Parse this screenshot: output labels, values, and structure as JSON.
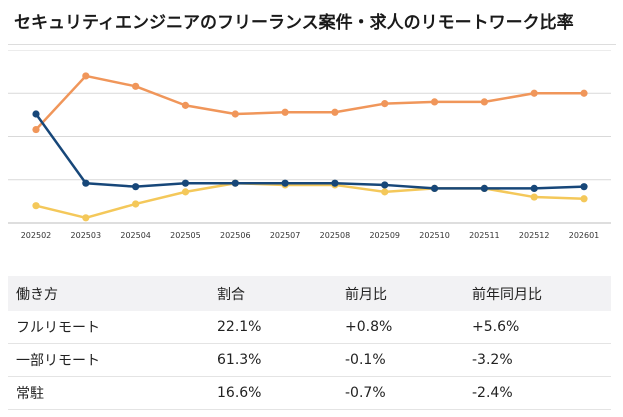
{
  "title": "セキュリティエンジニアのフリーランス案件・求人のリモートワーク比率",
  "chart_data": {
    "type": "line",
    "categories": [
      "202502",
      "202503",
      "202504",
      "202505",
      "202506",
      "202507",
      "202508",
      "202509",
      "202510",
      "202511",
      "202512",
      "202601"
    ],
    "ylim": [
      0,
      100
    ],
    "grid": true,
    "series": [
      {
        "name": "フルリモート",
        "color": "#f4c85a",
        "values": [
          10,
          3,
          11,
          18,
          23,
          22,
          22,
          18,
          20,
          20,
          15,
          14
        ]
      },
      {
        "name": "一部リモート",
        "color": "#f0965a",
        "values": [
          54,
          85,
          79,
          68,
          63,
          64,
          64,
          69,
          70,
          70,
          75,
          75
        ]
      },
      {
        "name": "常駐",
        "color": "#174779",
        "values": [
          63,
          23,
          21,
          23,
          23,
          23,
          23,
          22,
          20,
          20,
          20,
          21
        ]
      }
    ]
  },
  "table": {
    "headers": [
      "働き方",
      "割合",
      "前月比",
      "前年同月比"
    ],
    "rows": [
      [
        "フルリモート",
        "22.1%",
        "+0.8%",
        "+5.6%"
      ],
      [
        "一部リモート",
        "61.3%",
        "-0.1%",
        "-3.2%"
      ],
      [
        "常駐",
        "16.6%",
        "-0.7%",
        "-2.4%"
      ]
    ]
  }
}
